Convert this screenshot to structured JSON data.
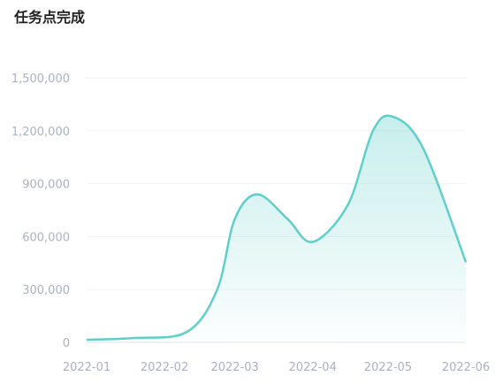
{
  "chart_data": {
    "type": "area",
    "title": "任务点完成",
    "x": [
      "2022-01",
      "2022-02",
      "2022-03",
      "2022-04",
      "2022-05",
      "2022-06"
    ],
    "curve": [
      {
        "x": "2022-01-01",
        "y": 15000
      },
      {
        "x": "2022-01-20",
        "y": 25000
      },
      {
        "x": "2022-02-10",
        "y": 60000
      },
      {
        "x": "2022-02-22",
        "y": 300000
      },
      {
        "x": "2022-03-01",
        "y": 700000
      },
      {
        "x": "2022-03-10",
        "y": 840000
      },
      {
        "x": "2022-03-22",
        "y": 700000
      },
      {
        "x": "2022-04-01",
        "y": 570000
      },
      {
        "x": "2022-04-15",
        "y": 780000
      },
      {
        "x": "2022-04-25",
        "y": 1200000
      },
      {
        "x": "2022-05-03",
        "y": 1280000
      },
      {
        "x": "2022-05-15",
        "y": 1100000
      },
      {
        "x": "2022-06-01",
        "y": 455000
      }
    ],
    "yticks": [
      "0",
      "300,000",
      "600,000",
      "900,000",
      "1,200,000",
      "1,500,000"
    ],
    "ylim": [
      0,
      1500000
    ],
    "grid": true,
    "line_color": "#5fcfc9",
    "fill_color": "#5fcfc9"
  }
}
